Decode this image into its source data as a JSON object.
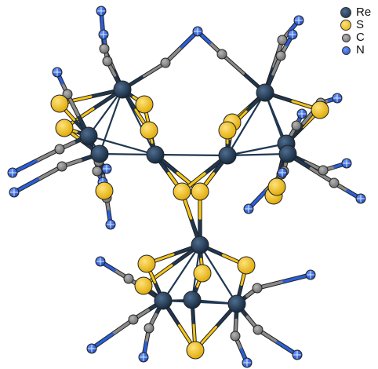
{
  "legend": [
    {
      "label": "Re",
      "color": "#1f3752",
      "icon": "rhenium-atom-icon"
    },
    {
      "label": "S",
      "color": "#f5c518",
      "icon": "sulfur-atom-icon"
    },
    {
      "label": "C",
      "color": "#8a8a8a",
      "icon": "carbon-atom-icon"
    },
    {
      "label": "N",
      "color": "#2a5fd8",
      "icon": "nitrogen-atom-icon"
    }
  ],
  "colors": {
    "re": "#1f3752",
    "s": "#f5c518",
    "c": "#8a8a8a",
    "n": "#2a5fd8",
    "bond_metal": "#1f3752"
  }
}
